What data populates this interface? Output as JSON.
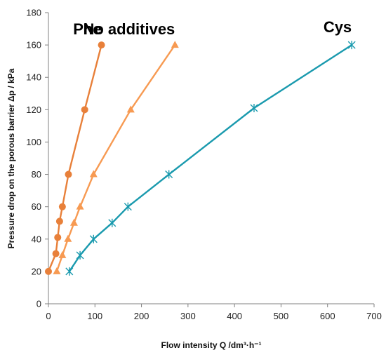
{
  "chart_data": {
    "type": "line",
    "title": "",
    "xlabel": "Flow intensity Q /dm³·h⁻¹",
    "ylabel": "Pressure drop on the porous barrier Δp / kPa",
    "xlim": [
      0,
      700
    ],
    "ylim": [
      0,
      180
    ],
    "x_ticks": [
      0,
      100,
      200,
      300,
      400,
      500,
      600,
      700
    ],
    "y_ticks": [
      0,
      20,
      40,
      60,
      80,
      100,
      120,
      140,
      160,
      180
    ],
    "grid": false,
    "legend": "inline labels",
    "series": [
      {
        "name": "Phe",
        "color": "#E8803A",
        "marker": "circle",
        "x": [
          0,
          16,
          20,
          24,
          30,
          43,
          78,
          114
        ],
        "y": [
          20,
          31,
          41,
          51,
          60,
          80,
          120,
          160
        ]
      },
      {
        "name": "No additives",
        "color": "#F79A52",
        "marker": "triangle",
        "x": [
          18,
          30,
          42,
          55,
          68,
          97,
          177,
          272
        ],
        "y": [
          20,
          30,
          40,
          50,
          60,
          80,
          120,
          160
        ]
      },
      {
        "name": "Cys",
        "color": "#1A9AAE",
        "marker": "star",
        "x": [
          45,
          68,
          97,
          137,
          171,
          259,
          442,
          652
        ],
        "y": [
          20,
          30,
          40,
          50,
          60,
          80,
          121,
          160
        ]
      }
    ]
  }
}
